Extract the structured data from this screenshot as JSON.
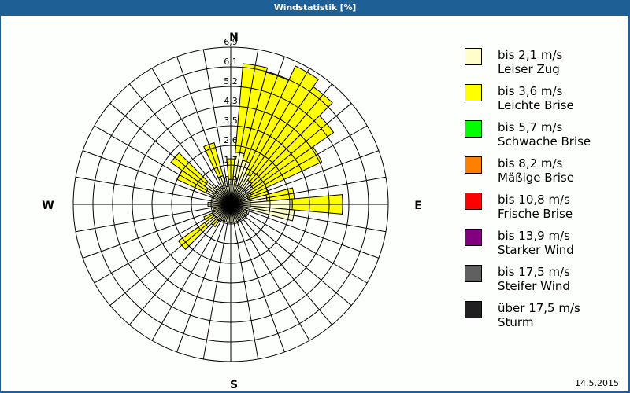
{
  "window": {
    "title": "Windstatistik [%]"
  },
  "footer": {
    "date": "14.5.2015"
  },
  "compass": {
    "n": "N",
    "e": "E",
    "s": "S",
    "w": "W"
  },
  "legend": [
    {
      "line1": "bis 2,1 m/s",
      "line2": "Leiser Zug",
      "color": "#ffffcc"
    },
    {
      "line1": "bis 3,6 m/s",
      "line2": "Leichte Brise",
      "color": "#ffff00"
    },
    {
      "line1": "bis 5,7 m/s",
      "line2": "Schwache Brise",
      "color": "#00ff00"
    },
    {
      "line1": "bis 8,2 m/s",
      "line2": "Mäßige Brise",
      "color": "#ff8000"
    },
    {
      "line1": "bis 10,8 m/s",
      "line2": "Frische Brise",
      "color": "#ff0000"
    },
    {
      "line1": "bis 13,9 m/s",
      "line2": "Starker Wind",
      "color": "#800080"
    },
    {
      "line1": "bis 17,5 m/s",
      "line2": "Steifer Wind",
      "color": "#606060"
    },
    {
      "line1": "über 17,5 m/s",
      "line2": "Sturm",
      "color": "#202020"
    }
  ],
  "chart_data": {
    "type": "wind-rose",
    "title": "Windstatistik [%]",
    "unit": "%",
    "ring_labels": [
      "0,9",
      "1,7",
      "2,6",
      "3,5",
      "4,3",
      "5,2",
      "6,1",
      "6,9"
    ],
    "rmax": 6.9,
    "sector_width_deg": 10,
    "directions_deg": [
      0,
      10,
      20,
      30,
      40,
      50,
      60,
      70,
      80,
      90,
      100,
      110,
      120,
      130,
      140,
      150,
      160,
      170,
      180,
      190,
      200,
      210,
      220,
      230,
      240,
      250,
      260,
      270,
      280,
      290,
      300,
      310,
      320,
      330,
      340,
      350
    ],
    "series": [
      {
        "name": "bis 2,1 m/s (Leiser Zug)",
        "color": "#ffffcc",
        "values": [
          1.1,
          2.3,
          2.0,
          1.5,
          1.3,
          1.2,
          1.0,
          0.8,
          1.6,
          2.7,
          2.8,
          0.7,
          0.8,
          0.8,
          0.8,
          0.8,
          0.8,
          0.8,
          0.8,
          0.8,
          0.8,
          0.8,
          0.9,
          1.4,
          0.9,
          0.8,
          0.8,
          1.0,
          0.8,
          0.8,
          1.2,
          1.4,
          1.0,
          0.8,
          1.3,
          0.8
        ]
      },
      {
        "name": "bis 3,6 m/s (Leichte Brise)",
        "color": "#ffff00",
        "values": [
          0.9,
          3.9,
          4.0,
          5.2,
          5.0,
          4.3,
          3.4,
          0.9,
          1.2,
          2.2,
          0,
          0,
          0,
          0,
          0,
          0,
          0,
          0,
          0,
          0,
          0,
          0,
          0.3,
          1.4,
          0.4,
          0,
          0,
          0,
          0,
          0,
          1.4,
          1.8,
          0,
          0,
          1.5,
          0
        ]
      },
      {
        "name": "bis 5,7 m/s (Schwache Brise)",
        "color": "#00ff00",
        "values": []
      },
      {
        "name": "bis 8,2 m/s (Mäßige Brise)",
        "color": "#ff8000",
        "values": []
      },
      {
        "name": "bis 10,8 m/s (Frische Brise)",
        "color": "#ff0000",
        "values": []
      },
      {
        "name": "bis 13,9 m/s (Starker Wind)",
        "color": "#800080",
        "values": []
      },
      {
        "name": "bis 17,5 m/s (Steifer Wind)",
        "color": "#606060",
        "values": []
      },
      {
        "name": "über 17,5 m/s (Sturm)",
        "color": "#202020",
        "values": []
      }
    ],
    "legend_position": "right",
    "grid": true
  }
}
